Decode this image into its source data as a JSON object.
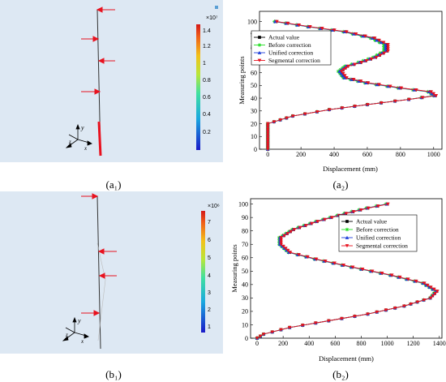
{
  "captions": {
    "a1": "(a₁)",
    "a2": "(a₂)",
    "b1": "(b₁)",
    "b2": "(b₂)"
  },
  "fem": {
    "a1": {
      "colorbar_exponent": "×10⁷",
      "colorbar_ticks": [
        "1.4",
        "1.2",
        "1",
        "0.8",
        "0.6",
        "0.4",
        "0.2"
      ],
      "axis_labels": {
        "y": "y",
        "x": "x",
        "z": "z"
      }
    },
    "b1": {
      "colorbar_exponent": "×10⁶",
      "colorbar_ticks": [
        "7",
        "6",
        "5",
        "4",
        "3",
        "2",
        "1"
      ],
      "axis_labels": {
        "y": "y",
        "x": "x",
        "z": "z"
      }
    }
  },
  "colors": {
    "actual": "#000000",
    "before": "#22dd22",
    "unified": "#1f3fd8",
    "segmental": "#e8121f",
    "arrow": "#e8121f"
  },
  "chart_data": [
    {
      "id": "a2",
      "type": "line",
      "xlabel": "Displacement (mm)",
      "ylabel": "Measuring points",
      "xlim": [
        -50,
        1050
      ],
      "ylim": [
        0,
        108
      ],
      "xticks": [
        0,
        200,
        400,
        600,
        800,
        1000
      ],
      "yticks": [
        0,
        10,
        20,
        30,
        40,
        50,
        60,
        70,
        80,
        90,
        100
      ],
      "legend_position": "top-right",
      "series": [
        {
          "name": "Actual value",
          "marker": "square",
          "points": [
            [
              0,
              0
            ],
            [
              0,
              20
            ],
            [
              150,
              26
            ],
            [
              370,
              31
            ],
            [
              600,
              35
            ],
            [
              850,
              39
            ],
            [
              1010,
              42
            ],
            [
              980,
              45
            ],
            [
              800,
              48
            ],
            [
              600,
              52
            ],
            [
              470,
              56
            ],
            [
              440,
              61
            ],
            [
              480,
              65
            ],
            [
              560,
              68
            ],
            [
              650,
              72
            ],
            [
              720,
              77
            ],
            [
              720,
              82
            ],
            [
              640,
              87
            ],
            [
              470,
              92
            ],
            [
              250,
              96
            ],
            [
              50,
              100
            ]
          ]
        },
        {
          "name": "Before correction",
          "marker": "star",
          "points": [
            [
              0,
              0
            ],
            [
              0,
              20
            ],
            [
              150,
              26
            ],
            [
              370,
              31
            ],
            [
              600,
              35
            ],
            [
              850,
              39
            ],
            [
              1000,
              42
            ],
            [
              965,
              45
            ],
            [
              785,
              48
            ],
            [
              585,
              52
            ],
            [
              455,
              56
            ],
            [
              425,
              61
            ],
            [
              465,
              65
            ],
            [
              545,
              68
            ],
            [
              635,
              72
            ],
            [
              700,
              77
            ],
            [
              700,
              82
            ],
            [
              620,
              87
            ],
            [
              455,
              92
            ],
            [
              240,
              96
            ],
            [
              40,
              100
            ]
          ]
        },
        {
          "name": "Unified correction",
          "marker": "triangle-up",
          "points": [
            [
              0,
              0
            ],
            [
              0,
              20
            ],
            [
              150,
              26
            ],
            [
              370,
              31
            ],
            [
              600,
              35
            ],
            [
              850,
              39
            ],
            [
              1005,
              42
            ],
            [
              972,
              45
            ],
            [
              792,
              48
            ],
            [
              592,
              52
            ],
            [
              462,
              56
            ],
            [
              432,
              61
            ],
            [
              472,
              65
            ],
            [
              552,
              68
            ],
            [
              642,
              72
            ],
            [
              710,
              77
            ],
            [
              710,
              82
            ],
            [
              630,
              87
            ],
            [
              462,
              92
            ],
            [
              244,
              96
            ],
            [
              44,
              100
            ]
          ]
        },
        {
          "name": "Segmental correction",
          "marker": "triangle-down",
          "points": [
            [
              0,
              0
            ],
            [
              0,
              20
            ],
            [
              152,
              26
            ],
            [
              372,
              31
            ],
            [
              602,
              35
            ],
            [
              852,
              39
            ],
            [
              1015,
              42
            ],
            [
              985,
              45
            ],
            [
              805,
              48
            ],
            [
              605,
              52
            ],
            [
              475,
              56
            ],
            [
              445,
              61
            ],
            [
              485,
              65
            ],
            [
              565,
              68
            ],
            [
              655,
              72
            ],
            [
              725,
              77
            ],
            [
              725,
              82
            ],
            [
              645,
              87
            ],
            [
              475,
              92
            ],
            [
              255,
              96
            ],
            [
              55,
              100
            ]
          ]
        }
      ]
    },
    {
      "id": "b2",
      "type": "line",
      "xlabel": "Displacement (mm)",
      "ylabel": "Measuring points",
      "xlim": [
        -50,
        1420
      ],
      "ylim": [
        0,
        104
      ],
      "xticks": [
        0,
        200,
        400,
        600,
        800,
        1000,
        1200,
        1400
      ],
      "yticks": [
        0,
        10,
        20,
        30,
        40,
        50,
        60,
        70,
        80,
        90,
        100
      ],
      "legend_position": "top-right",
      "series": [
        {
          "name": "Actual value",
          "marker": "square",
          "points": [
            [
              0,
              0
            ],
            [
              50,
              3
            ],
            [
              250,
              8
            ],
            [
              550,
              13
            ],
            [
              850,
              18
            ],
            [
              1130,
              24
            ],
            [
              1330,
              30
            ],
            [
              1380,
              35
            ],
            [
              1280,
              41
            ],
            [
              1030,
              47
            ],
            [
              730,
              53
            ],
            [
              450,
              59
            ],
            [
              250,
              64
            ],
            [
              180,
              70
            ],
            [
              180,
              75
            ],
            [
              280,
              81
            ],
            [
              460,
              87
            ],
            [
              680,
              93
            ],
            [
              850,
              97
            ],
            [
              1000,
              100
            ]
          ]
        },
        {
          "name": "Before correction",
          "marker": "star",
          "points": [
            [
              0,
              0
            ],
            [
              50,
              3
            ],
            [
              250,
              8
            ],
            [
              550,
              13
            ],
            [
              850,
              18
            ],
            [
              1130,
              24
            ],
            [
              1330,
              30
            ],
            [
              1370,
              35
            ],
            [
              1270,
              41
            ],
            [
              1020,
              47
            ],
            [
              720,
              53
            ],
            [
              440,
              59
            ],
            [
              240,
              64
            ],
            [
              170,
              70
            ],
            [
              170,
              75
            ],
            [
              270,
              81
            ],
            [
              450,
              87
            ],
            [
              670,
              93
            ],
            [
              840,
              97
            ],
            [
              990,
              100
            ]
          ]
        },
        {
          "name": "Unified correction",
          "marker": "triangle-up",
          "points": [
            [
              0,
              0
            ],
            [
              50,
              3
            ],
            [
              250,
              8
            ],
            [
              550,
              13
            ],
            [
              850,
              18
            ],
            [
              1130,
              24
            ],
            [
              1330,
              30
            ],
            [
              1375,
              35
            ],
            [
              1275,
              41
            ],
            [
              1025,
              47
            ],
            [
              725,
              53
            ],
            [
              445,
              59
            ],
            [
              245,
              64
            ],
            [
              175,
              70
            ],
            [
              175,
              75
            ],
            [
              275,
              81
            ],
            [
              455,
              87
            ],
            [
              675,
              93
            ],
            [
              845,
              97
            ],
            [
              995,
              100
            ]
          ]
        },
        {
          "name": "Segmental correction",
          "marker": "triangle-down",
          "points": [
            [
              0,
              0
            ],
            [
              50,
              3
            ],
            [
              250,
              8
            ],
            [
              550,
              13
            ],
            [
              850,
              18
            ],
            [
              1130,
              24
            ],
            [
              1335,
              30
            ],
            [
              1385,
              35
            ],
            [
              1285,
              41
            ],
            [
              1035,
              47
            ],
            [
              735,
              53
            ],
            [
              455,
              59
            ],
            [
              255,
              64
            ],
            [
              185,
              70
            ],
            [
              185,
              75
            ],
            [
              285,
              81
            ],
            [
              465,
              87
            ],
            [
              685,
              93
            ],
            [
              855,
              97
            ],
            [
              1005,
              100
            ]
          ]
        }
      ]
    }
  ]
}
